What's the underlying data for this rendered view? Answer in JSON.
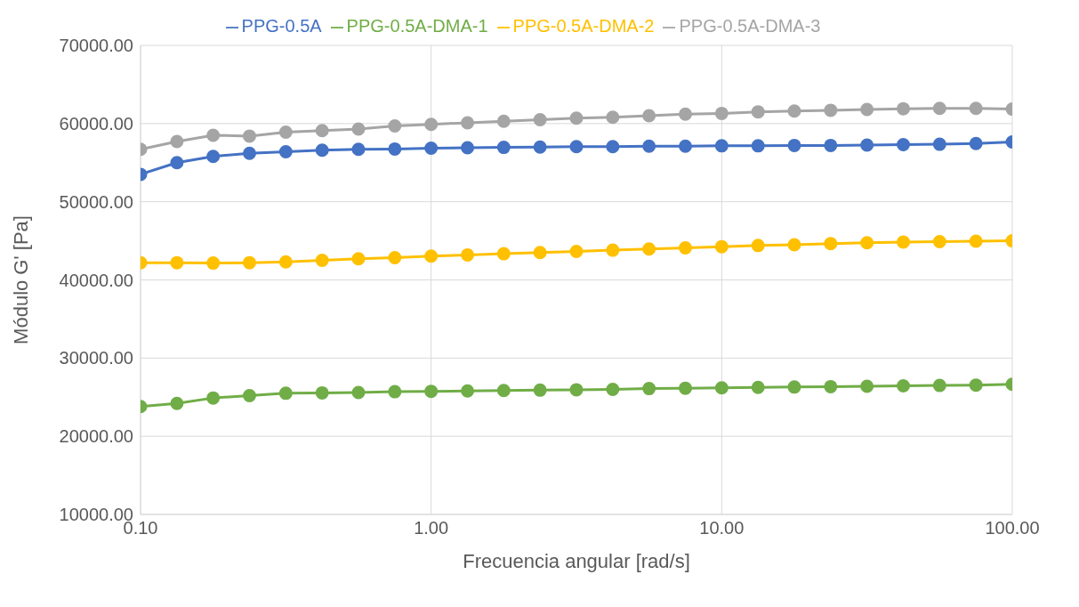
{
  "chart_data": {
    "type": "line",
    "xlabel": "Frecuencia angular [rad/s]",
    "ylabel": "Módulo G' [Pa]",
    "x": [
      0.1,
      0.1334,
      0.1778,
      0.2371,
      0.3162,
      0.4217,
      0.5623,
      0.7499,
      1,
      1.334,
      1.778,
      2.371,
      3.162,
      4.217,
      5.623,
      7.499,
      10,
      13.34,
      17.78,
      23.71,
      31.62,
      42.17,
      56.23,
      74.99,
      100
    ],
    "series": [
      {
        "name": "PPG-0.5A",
        "color": "#4472c4",
        "values": [
          53500,
          55000,
          55800,
          56200,
          56400,
          56600,
          56700,
          56750,
          56850,
          56900,
          56950,
          57000,
          57050,
          57050,
          57100,
          57100,
          57150,
          57150,
          57200,
          57200,
          57250,
          57300,
          57350,
          57450,
          57650
        ]
      },
      {
        "name": "PPG-0.5A-DMA-1",
        "color": "#70ad47",
        "values": [
          23800,
          24200,
          24900,
          25200,
          25500,
          25550,
          25600,
          25700,
          25750,
          25800,
          25850,
          25900,
          25950,
          26000,
          26100,
          26150,
          26200,
          26250,
          26300,
          26350,
          26400,
          26450,
          26500,
          26550,
          26650
        ]
      },
      {
        "name": "PPG-0.5A-DMA-2",
        "color": "#ffc000",
        "values": [
          42200,
          42200,
          42150,
          42200,
          42300,
          42500,
          42700,
          42850,
          43050,
          43200,
          43350,
          43500,
          43650,
          43800,
          43950,
          44100,
          44250,
          44400,
          44500,
          44650,
          44750,
          44850,
          44900,
          44950,
          45000
        ]
      },
      {
        "name": "PPG-0.5A-DMA-3",
        "color": "#a5a5a5",
        "values": [
          56700,
          57700,
          58500,
          58400,
          58900,
          59100,
          59300,
          59700,
          59900,
          60100,
          60300,
          60500,
          60700,
          60800,
          61000,
          61200,
          61300,
          61500,
          61600,
          61700,
          61800,
          61900,
          61950,
          61950,
          61850
        ]
      }
    ],
    "log": "x",
    "xlim": [
      0.1,
      100
    ],
    "xticks": [
      {
        "value": 0.1,
        "label": "0.10"
      },
      {
        "value": 1,
        "label": "1.00"
      },
      {
        "value": 10,
        "label": "10.00"
      },
      {
        "value": 100,
        "label": "100.00"
      }
    ],
    "ylim": [
      10000,
      70000
    ],
    "yticks": [
      {
        "value": 10000,
        "label": "10000.00"
      },
      {
        "value": 20000,
        "label": "20000.00"
      },
      {
        "value": 30000,
        "label": "30000.00"
      },
      {
        "value": 40000,
        "label": "40000.00"
      },
      {
        "value": 50000,
        "label": "50000.00"
      },
      {
        "value": 60000,
        "label": "60000.00"
      },
      {
        "value": 70000,
        "label": "70000.00"
      }
    ],
    "grid": true,
    "legend": "top",
    "marker": "circle",
    "line_style": "solid"
  }
}
